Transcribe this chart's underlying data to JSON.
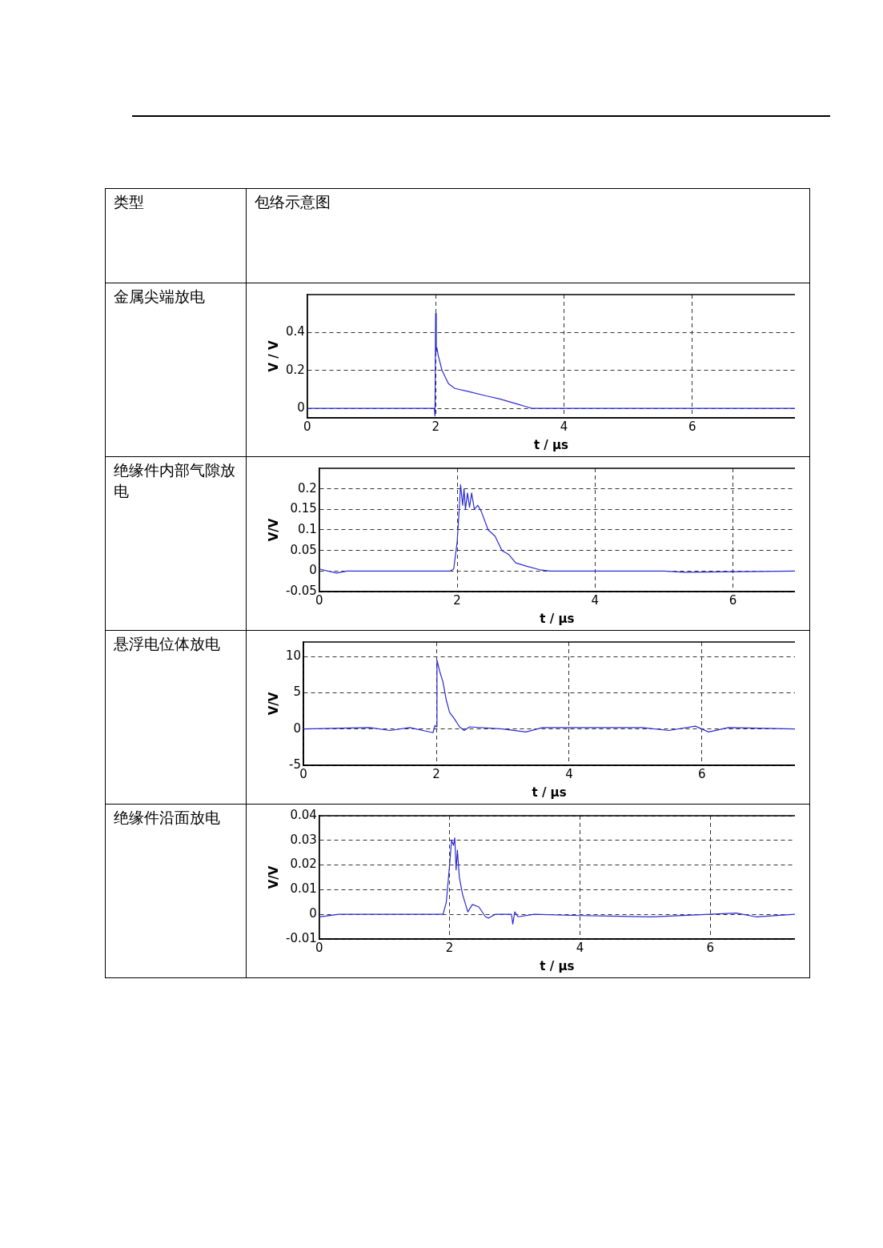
{
  "chart_data": [
    {
      "type": "line",
      "title": "金属尖端放电",
      "annotations": [
        "类型",
        "包络示意图"
      ],
      "xlabel": "t / µs",
      "ylabel": "V / V",
      "xlim": [
        0,
        7.6
      ],
      "xticks": [
        0,
        2,
        4,
        6
      ],
      "ylim": [
        -0.05,
        0.6
      ],
      "yticks": [
        0,
        0.2,
        0.4
      ],
      "grid": true,
      "marker": "none",
      "line_style": "solid",
      "x": [
        0,
        1.98,
        1.99,
        2.0,
        2.01,
        2.02,
        2.04,
        2.1,
        2.2,
        2.3,
        2.5,
        2.8,
        3.0,
        3.3,
        3.4,
        3.5,
        7.6
      ],
      "series": [
        {
          "color": "#2b2bd6",
          "values": [
            0,
            0,
            -0.04,
            0.5,
            0.3,
            0.32,
            0.28,
            0.2,
            0.13,
            0.105,
            0.09,
            0.065,
            0.05,
            0.02,
            0.01,
            0,
            0
          ]
        }
      ]
    },
    {
      "type": "line",
      "title": "绝缘件内部气隙放电",
      "xlabel": "t / µs",
      "ylabel": "V/V",
      "xlim": [
        0,
        6.9
      ],
      "xticks": [
        0,
        2,
        4,
        6
      ],
      "ylim": [
        -0.05,
        0.25
      ],
      "yticks": [
        -0.05,
        0,
        0.05,
        0.1,
        0.15,
        0.2
      ],
      "grid": true,
      "marker": "none",
      "line_style": "solid",
      "x": [
        0,
        0.25,
        0.4,
        1.9,
        1.95,
        2.0,
        2.03,
        2.05,
        2.08,
        2.1,
        2.12,
        2.15,
        2.18,
        2.21,
        2.25,
        2.3,
        2.35,
        2.45,
        2.55,
        2.65,
        2.75,
        2.85,
        3.0,
        3.2,
        3.35,
        5.0,
        5.3,
        6.9
      ],
      "series": [
        {
          "color": "#2b2bd6",
          "values": [
            0.005,
            -0.005,
            0,
            0,
            0.005,
            0.07,
            0.15,
            0.21,
            0.16,
            0.2,
            0.15,
            0.19,
            0.155,
            0.19,
            0.15,
            0.16,
            0.145,
            0.1,
            0.085,
            0.05,
            0.04,
            0.02,
            0.012,
            0.003,
            0,
            0,
            -0.003,
            0
          ]
        }
      ]
    },
    {
      "type": "line",
      "title": "悬浮电位体放电",
      "xlabel": "t / µs",
      "ylabel": "V/V",
      "xlim": [
        0,
        7.4
      ],
      "xticks": [
        0,
        2,
        4,
        6
      ],
      "ylim": [
        -5,
        12
      ],
      "yticks": [
        -5,
        0,
        5,
        10
      ],
      "grid": true,
      "marker": "none",
      "line_style": "solid",
      "x": [
        0,
        1.0,
        1.3,
        1.6,
        1.95,
        1.98,
        2.0,
        2.01,
        2.05,
        2.1,
        2.15,
        2.2,
        2.28,
        2.35,
        2.42,
        2.5,
        3.0,
        3.35,
        3.6,
        5.1,
        5.5,
        5.9,
        6.1,
        6.4,
        7.4
      ],
      "series": [
        {
          "color": "#2b2bd6",
          "values": [
            0,
            0.2,
            -0.2,
            0.2,
            -0.5,
            0.5,
            0.3,
            9.5,
            8,
            6.5,
            4,
            2.3,
            1.3,
            0.3,
            -0.2,
            0.3,
            0,
            -0.4,
            0.2,
            0.2,
            -0.2,
            0.4,
            -0.4,
            0.2,
            0
          ]
        }
      ]
    },
    {
      "type": "line",
      "title": "绝缘件沿面放电",
      "xlabel": "t / µs",
      "ylabel": "V/V",
      "xlim": [
        0,
        7.3
      ],
      "xticks": [
        0,
        2,
        4,
        6
      ],
      "ylim": [
        -0.01,
        0.04
      ],
      "yticks": [
        -0.01,
        0,
        0.01,
        0.02,
        0.03,
        0.04
      ],
      "grid": true,
      "marker": "none",
      "line_style": "solid",
      "x": [
        0,
        0.3,
        1.9,
        1.95,
        2.0,
        2.03,
        2.06,
        2.08,
        2.1,
        2.12,
        2.15,
        2.2,
        2.28,
        2.35,
        2.45,
        2.55,
        2.6,
        2.7,
        2.95,
        2.97,
        3.0,
        3.05,
        3.3,
        4.0,
        5.1,
        6.4,
        6.7,
        7.3
      ],
      "series": [
        {
          "color": "#2b2bd6",
          "values": [
            -0.001,
            0,
            0,
            0.005,
            0.02,
            0.03,
            0.028,
            0.031,
            0.018,
            0.026,
            0.015,
            0.008,
            0.001,
            0.004,
            0.003,
            -0.001,
            -0.0015,
            0,
            0,
            -0.004,
            0.001,
            -0.001,
            0,
            -0.0005,
            -0.001,
            0.0005,
            -0.001,
            0
          ]
        }
      ]
    }
  ]
}
